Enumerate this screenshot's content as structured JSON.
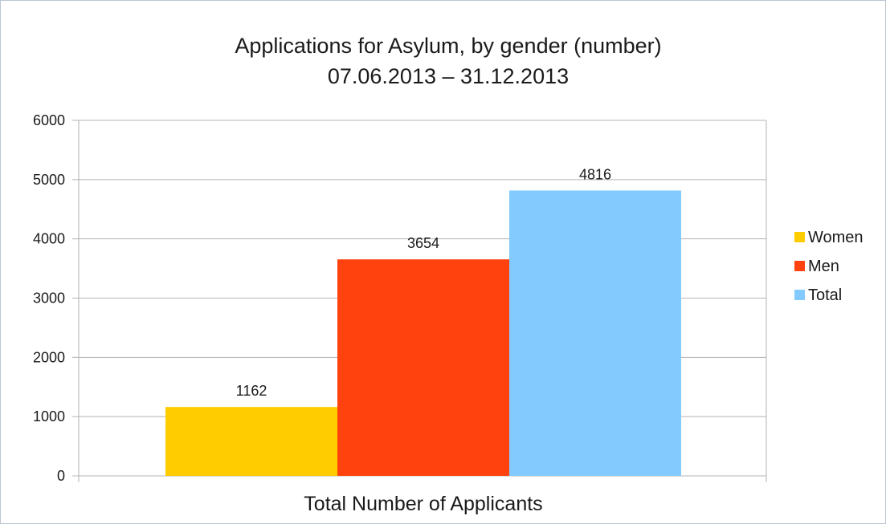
{
  "chart_data": {
    "type": "bar",
    "title": "Applications for Asylum, by gender (number)",
    "subtitle": "07.06.2013 – 31.12.2013",
    "categories": [
      "Total Number of Applicants"
    ],
    "series": [
      {
        "name": "Women",
        "values": [
          1162
        ],
        "color": "#ffcc00"
      },
      {
        "name": "Men",
        "values": [
          3654
        ],
        "color": "#ff420e"
      },
      {
        "name": "Total",
        "values": [
          4816
        ],
        "color": "#83caff"
      }
    ],
    "xlabel": "Total Number of Applicants",
    "ylabel": "",
    "ylim": [
      0,
      6000
    ],
    "yticks": [
      "0",
      "1000",
      "2000",
      "3000",
      "4000",
      "5000",
      "6000"
    ],
    "grid": true,
    "legend_position": "right"
  }
}
